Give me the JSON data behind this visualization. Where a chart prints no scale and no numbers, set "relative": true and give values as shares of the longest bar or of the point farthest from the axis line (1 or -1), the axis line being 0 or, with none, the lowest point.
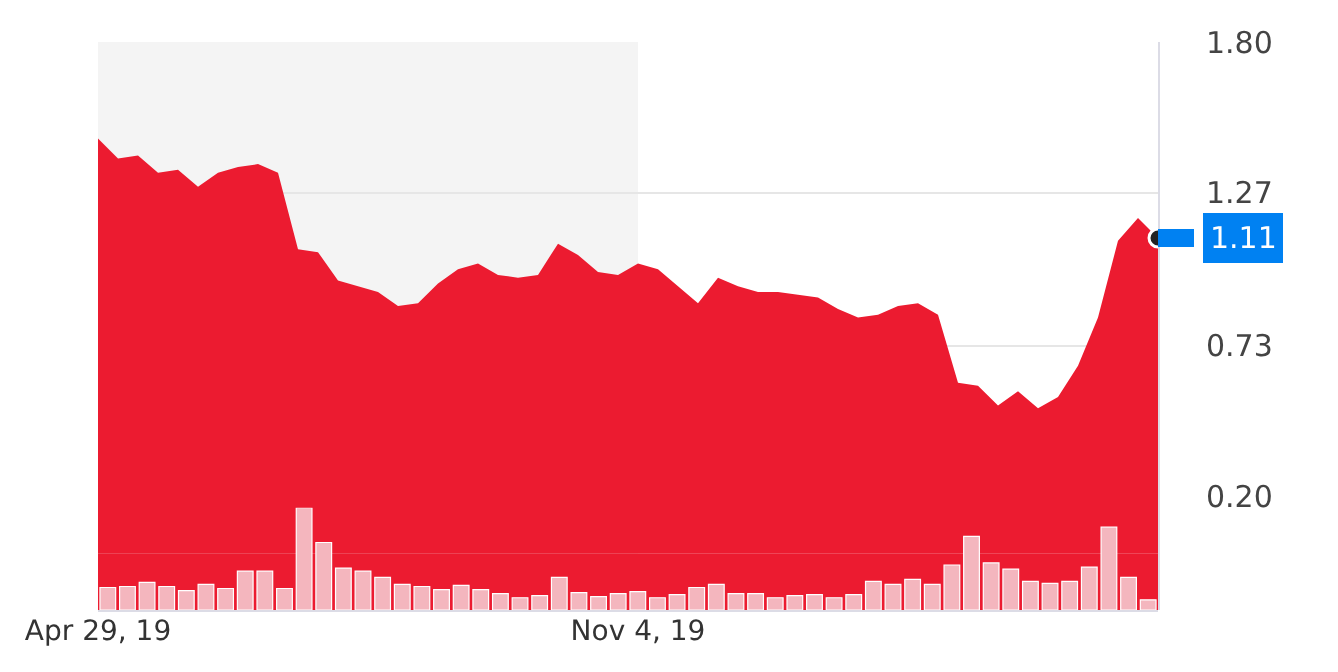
{
  "chart_data": [
    {
      "type": "area",
      "x": [
        "2019-04-29",
        "2019-05-06",
        "2019-05-13",
        "2019-05-20",
        "2019-05-27",
        "2019-06-03",
        "2019-06-10",
        "2019-06-17",
        "2019-06-24",
        "2019-07-01",
        "2019-07-08",
        "2019-07-15",
        "2019-07-22",
        "2019-07-29",
        "2019-08-05",
        "2019-08-12",
        "2019-08-19",
        "2019-08-26",
        "2019-09-02",
        "2019-09-09",
        "2019-09-16",
        "2019-09-23",
        "2019-09-30",
        "2019-10-07",
        "2019-10-14",
        "2019-10-21",
        "2019-10-28",
        "2019-11-04",
        "2019-11-11",
        "2019-11-18",
        "2019-11-25",
        "2019-12-02",
        "2019-12-09",
        "2019-12-16",
        "2019-12-23",
        "2019-12-30",
        "2020-01-06",
        "2020-01-13",
        "2020-01-20",
        "2020-01-27",
        "2020-02-03",
        "2020-02-10",
        "2020-02-17",
        "2020-02-24",
        "2020-03-02",
        "2020-03-09",
        "2020-03-16",
        "2020-03-23",
        "2020-03-30",
        "2020-04-06",
        "2020-04-13",
        "2020-04-20",
        "2020-04-27",
        "2020-05-04"
      ],
      "series": [
        {
          "color": "#ec1b30",
          "values": [
            1.46,
            1.39,
            1.4,
            1.34,
            1.35,
            1.29,
            1.34,
            1.36,
            1.37,
            1.34,
            1.07,
            1.06,
            0.96,
            0.94,
            0.92,
            0.87,
            0.88,
            0.95,
            1.0,
            1.02,
            0.98,
            0.97,
            0.98,
            1.09,
            1.05,
            0.99,
            0.98,
            1.02,
            1.0,
            0.94,
            0.88,
            0.97,
            0.94,
            0.92,
            0.92,
            0.91,
            0.9,
            0.86,
            0.83,
            0.84,
            0.87,
            0.88,
            0.84,
            0.6,
            0.59,
            0.52,
            0.57,
            0.51,
            0.55,
            0.66,
            0.83,
            1.1,
            1.18,
            1.11
          ]
        }
      ],
      "xlim": [
        "2019-04-29",
        "2020-05-04"
      ],
      "xticks": [
        {
          "value": "2019-04-29",
          "label": "Apr 29, 19"
        },
        {
          "value": "2019-11-04",
          "label": "Nov 4, 19"
        }
      ],
      "ylim": [
        -0.2,
        1.8
      ],
      "yticks": [
        {
          "value": 0.2,
          "label": "0.20"
        },
        0.73,
        1.27,
        {
          "value": 1.8,
          "label": "1.80"
        }
      ],
      "grid": "y",
      "legend": false,
      "bands": [
        {
          "axis": "x",
          "from": "2019-04-29",
          "to": "2019-11-04",
          "color": "#f4f4f4"
        }
      ],
      "annotations": [
        {
          "text": "1.11",
          "x": "2020-05-04",
          "y": 1.11
        }
      ]
    },
    {
      "type": "bar",
      "relative": true,
      "categories": [
        null,
        null,
        null,
        null,
        null,
        null,
        null,
        null,
        null,
        null,
        null,
        null,
        null,
        null,
        null,
        null,
        null,
        null,
        null,
        null,
        null,
        null,
        null,
        null,
        null,
        null,
        null,
        null,
        null,
        null,
        null,
        null,
        null,
        null,
        null,
        null,
        null,
        null,
        null,
        null,
        null,
        null,
        null,
        null,
        null,
        null,
        null,
        null,
        null,
        null,
        null,
        null,
        null,
        null
      ],
      "series": [
        {
          "color": "#f4b6be",
          "values": [
            0.22,
            0.23,
            0.27,
            0.23,
            0.19,
            0.25,
            0.21,
            0.38,
            0.38,
            0.21,
            1,
            0.66,
            0.41,
            0.38,
            0.32,
            0.25,
            0.23,
            0.2,
            0.24,
            0.2,
            0.16,
            0.12,
            0.14,
            0.32,
            0.17,
            0.13,
            0.16,
            0.18,
            0.12,
            0.15,
            0.22,
            0.25,
            0.16,
            0.16,
            0.12,
            0.14,
            0.15,
            0.12,
            0.15,
            0.28,
            0.25,
            0.3,
            0.25,
            0.44,
            0.72,
            0.46,
            0.4,
            0.28,
            0.26,
            0.28,
            0.42,
            0.81,
            0.32,
            0.1
          ]
        }
      ]
    }
  ]
}
